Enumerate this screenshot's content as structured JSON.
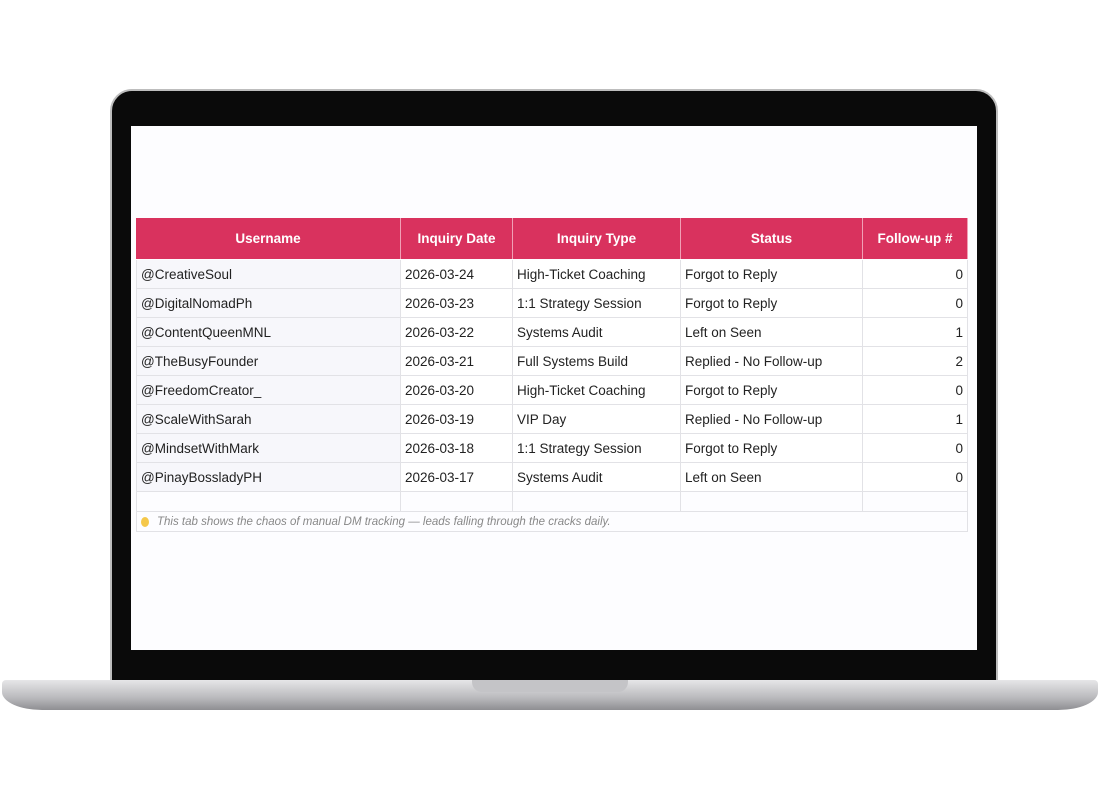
{
  "table": {
    "columns": [
      "Username",
      "Inquiry Date",
      "Inquiry Type",
      "Status",
      "Follow-up #"
    ],
    "rows": [
      [
        "@CreativeSoul",
        "2026-03-24",
        "High-Ticket Coaching",
        "Forgot to Reply",
        0
      ],
      [
        "@DigitalNomadPh",
        "2026-03-23",
        "1:1 Strategy Session",
        "Forgot to Reply",
        0
      ],
      [
        "@ContentQueenMNL",
        "2026-03-22",
        "Systems Audit",
        "Left on Seen",
        1
      ],
      [
        "@TheBusyFounder",
        "2026-03-21",
        "Full Systems Build",
        "Replied - No Follow-up",
        2
      ],
      [
        "@FreedomCreator_",
        "2026-03-20",
        "High-Ticket Coaching",
        "Forgot to Reply",
        0
      ],
      [
        "@ScaleWithSarah",
        "2026-03-19",
        "VIP Day",
        "Replied - No Follow-up",
        1
      ],
      [
        "@MindsetWithMark",
        "2026-03-18",
        "1:1 Strategy Session",
        "Forgot to Reply",
        0
      ],
      [
        "@PinayBossladyPH",
        "2026-03-17",
        "Systems Audit",
        "Left on Seen",
        0
      ]
    ],
    "note": "This tab shows the chaos of manual DM tracking — leads falling through the cracks daily."
  }
}
